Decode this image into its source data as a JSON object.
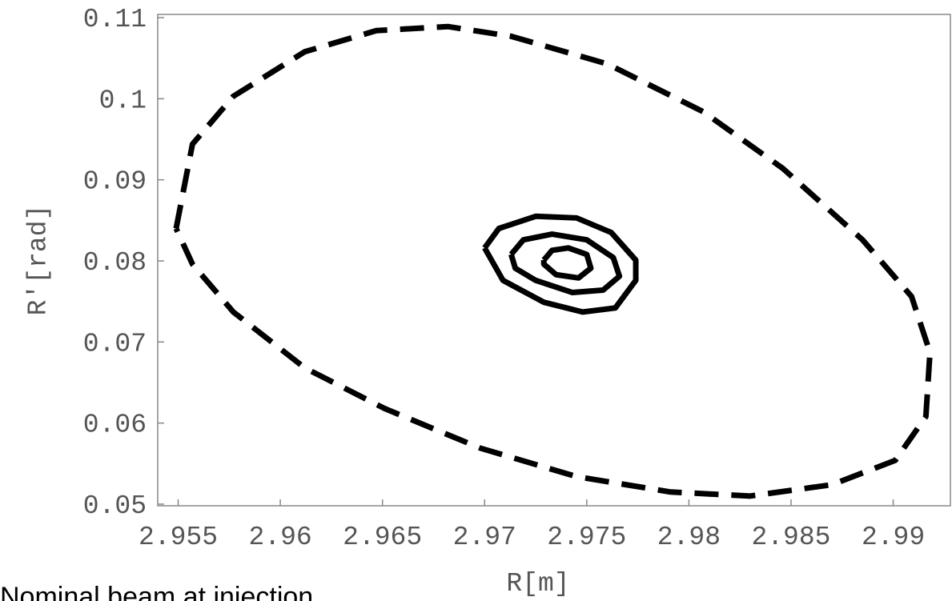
{
  "chart_data": {
    "type": "line",
    "caption": "Nominal beam at injection",
    "xlabel": "R[m]",
    "ylabel": "R'[rad]",
    "xlim": [
      2.954,
      2.9928
    ],
    "ylim": [
      0.0498,
      0.1104
    ],
    "xticks": [
      2.955,
      2.96,
      2.965,
      2.97,
      2.975,
      2.98,
      2.985,
      2.99
    ],
    "yticks": [
      0.05,
      0.06,
      0.07,
      0.08,
      0.09,
      0.1,
      0.11
    ],
    "series": [
      {
        "color": "#000000",
        "dashed": true,
        "x": [
          2.9549,
          2.9557,
          2.9577,
          2.9612,
          2.9647,
          2.9682,
          2.9713,
          2.976,
          2.9807,
          2.9846,
          2.9885,
          2.9909,
          2.9918,
          2.9916,
          2.9901,
          2.987,
          2.983,
          2.9791,
          2.9745,
          2.9698,
          2.9651,
          2.9612,
          2.9577,
          2.9557,
          2.9549
        ],
        "values": [
          0.084,
          0.0944,
          0.1003,
          0.1058,
          0.1084,
          0.1089,
          0.1077,
          0.1043,
          0.0984,
          0.0914,
          0.0826,
          0.0756,
          0.0687,
          0.0608,
          0.0554,
          0.0524,
          0.051,
          0.0515,
          0.0534,
          0.0569,
          0.0618,
          0.0668,
          0.0737,
          0.0796,
          0.084
        ]
      },
      {
        "color": "#000000",
        "dashed": false,
        "x": [
          2.97,
          2.9707,
          2.9725,
          2.9745,
          2.9762,
          2.9774,
          2.9774,
          2.9764,
          2.9748,
          2.9729,
          2.9709,
          2.97
        ],
        "values": [
          0.0816,
          0.084,
          0.0855,
          0.0853,
          0.0835,
          0.0801,
          0.0776,
          0.0742,
          0.0737,
          0.0749,
          0.0776,
          0.0816
        ]
      },
      {
        "color": "#000000",
        "dashed": false,
        "x": [
          2.9713,
          2.9719,
          2.9733,
          2.975,
          2.9763,
          2.9766,
          2.9758,
          2.9743,
          2.9725,
          2.9715,
          2.9713
        ],
        "values": [
          0.0808,
          0.0826,
          0.0833,
          0.0826,
          0.0804,
          0.0781,
          0.0764,
          0.0761,
          0.0776,
          0.0791,
          0.0808
        ]
      },
      {
        "color": "#000000",
        "dashed": false,
        "x": [
          2.9729,
          2.9733,
          2.9741,
          2.975,
          2.9752,
          2.9746,
          2.9735,
          2.9729,
          2.9729
        ],
        "values": [
          0.0801,
          0.0813,
          0.0816,
          0.0808,
          0.0791,
          0.0779,
          0.0783,
          0.0796,
          0.0801
        ]
      }
    ]
  }
}
